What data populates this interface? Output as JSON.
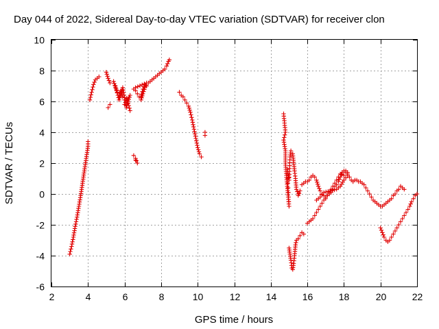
{
  "chart_data": {
    "type": "scatter",
    "title": "Day 044 of 2022, Sidereal Day-to-day VTEC variation (SDTVAR) for receiver clon",
    "xlabel": "GPS time / hours",
    "ylabel": "SDTVAR / TECUs",
    "xlim": [
      2,
      22
    ],
    "ylim": [
      -6,
      10
    ],
    "xticks": [
      "2",
      "4",
      "6",
      "8",
      "10",
      "12",
      "14",
      "16",
      "18",
      "20",
      "22"
    ],
    "yticks": [
      "-6",
      "-4",
      "-2",
      "0",
      "2",
      "4",
      "6",
      "8",
      "10"
    ],
    "grid": true,
    "marker": "+",
    "color": "#e00000",
    "series": [
      {
        "name": "SDTVAR",
        "segments": [
          [
            [
              3.0,
              -3.9
            ],
            [
              3.1,
              -3.4
            ],
            [
              3.2,
              -2.8
            ],
            [
              3.3,
              -2.1
            ],
            [
              3.4,
              -1.5
            ],
            [
              3.5,
              -0.8
            ],
            [
              3.6,
              -0.1
            ],
            [
              3.7,
              0.7
            ],
            [
              3.8,
              1.5
            ],
            [
              3.9,
              2.3
            ],
            [
              4.0,
              3.1
            ],
            [
              4.0,
              3.4
            ]
          ],
          [
            [
              4.1,
              6.1
            ],
            [
              4.2,
              6.6
            ],
            [
              4.3,
              7.1
            ],
            [
              4.4,
              7.4
            ],
            [
              4.5,
              7.5
            ],
            [
              4.6,
              7.6
            ]
          ],
          [
            [
              5.0,
              7.9
            ],
            [
              5.1,
              7.5
            ],
            [
              5.2,
              7.2
            ]
          ],
          [
            [
              5.1,
              5.6
            ],
            [
              5.2,
              5.8
            ]
          ],
          [
            [
              5.4,
              7.3
            ],
            [
              5.5,
              6.9
            ],
            [
              5.6,
              6.6
            ],
            [
              5.7,
              6.4
            ],
            [
              5.8,
              6.7
            ],
            [
              5.9,
              6.3
            ],
            [
              6.0,
              6.1
            ],
            [
              6.1,
              6.2
            ],
            [
              6.2,
              5.9
            ],
            [
              6.3,
              5.4
            ]
          ],
          [
            [
              5.5,
              7.0
            ],
            [
              5.7,
              6.1
            ],
            [
              5.9,
              6.9
            ],
            [
              6.1,
              5.6
            ],
            [
              6.3,
              6.4
            ],
            [
              6.0,
              5.8
            ]
          ],
          [
            [
              6.5,
              6.8
            ],
            [
              6.6,
              6.7
            ],
            [
              6.7,
              6.5
            ],
            [
              6.8,
              6.3
            ],
            [
              6.9,
              6.3
            ],
            [
              7.0,
              6.8
            ],
            [
              7.1,
              7.1
            ],
            [
              7.2,
              7.0
            ],
            [
              7.3,
              7.2
            ],
            [
              7.4,
              7.3
            ],
            [
              7.5,
              7.4
            ],
            [
              7.6,
              7.5
            ],
            [
              7.7,
              7.6
            ],
            [
              7.8,
              7.7
            ],
            [
              7.9,
              7.8
            ],
            [
              8.0,
              7.9
            ],
            [
              8.1,
              8.0
            ],
            [
              8.2,
              8.1
            ],
            [
              8.3,
              8.3
            ],
            [
              8.4,
              8.6
            ],
            [
              8.45,
              8.7
            ]
          ],
          [
            [
              6.9,
              6.1
            ],
            [
              7.0,
              6.5
            ],
            [
              7.2,
              7.2
            ],
            [
              6.6,
              6.9
            ]
          ],
          [
            [
              6.5,
              2.5
            ],
            [
              6.6,
              2.3
            ],
            [
              6.7,
              2.0
            ],
            [
              6.6,
              2.2
            ]
          ],
          [
            [
              9.0,
              6.6
            ],
            [
              9.1,
              6.4
            ],
            [
              9.2,
              6.3
            ],
            [
              9.3,
              6.1
            ],
            [
              9.4,
              5.9
            ],
            [
              9.5,
              5.7
            ],
            [
              9.6,
              5.3
            ],
            [
              9.7,
              4.8
            ],
            [
              9.8,
              4.2
            ],
            [
              9.9,
              3.6
            ],
            [
              10.0,
              3.0
            ],
            [
              10.1,
              2.6
            ],
            [
              10.2,
              2.4
            ]
          ],
          [
            [
              10.4,
              4.0
            ],
            [
              10.4,
              3.8
            ]
          ],
          [
            [
              14.7,
              5.2
            ],
            [
              14.75,
              4.6
            ],
            [
              14.8,
              4.0
            ],
            [
              14.7,
              3.5
            ],
            [
              14.8,
              2.8
            ],
            [
              14.8,
              2.0
            ],
            [
              14.85,
              1.2
            ],
            [
              14.9,
              0.5
            ],
            [
              14.95,
              -0.2
            ],
            [
              15.0,
              -0.8
            ],
            [
              14.9,
              1.6
            ],
            [
              15.0,
              0.9
            ],
            [
              15.05,
              2.4
            ],
            [
              15.1,
              2.8
            ],
            [
              15.2,
              2.6
            ],
            [
              15.3,
              1.5
            ],
            [
              15.35,
              1.0
            ],
            [
              15.4,
              0.3
            ],
            [
              15.5,
              0.0
            ],
            [
              15.6,
              0.2
            ],
            [
              15.5,
              -0.1
            ]
          ],
          [
            [
              15.0,
              -3.5
            ],
            [
              15.05,
              -3.9
            ],
            [
              15.1,
              -4.3
            ],
            [
              15.15,
              -4.8
            ],
            [
              15.2,
              -4.9
            ],
            [
              15.25,
              -4.5
            ],
            [
              15.3,
              -4.0
            ],
            [
              15.35,
              -3.3
            ],
            [
              15.4,
              -3.0
            ],
            [
              15.5,
              -2.9
            ],
            [
              15.6,
              -2.7
            ],
            [
              15.7,
              -2.5
            ],
            [
              15.8,
              -2.6
            ]
          ],
          [
            [
              15.7,
              0.6
            ],
            [
              15.8,
              0.7
            ],
            [
              15.9,
              0.8
            ],
            [
              16.0,
              0.8
            ],
            [
              16.1,
              0.9
            ],
            [
              16.2,
              1.1
            ],
            [
              16.3,
              1.2
            ],
            [
              16.4,
              1.1
            ],
            [
              16.5,
              0.9
            ],
            [
              16.6,
              0.5
            ],
            [
              16.7,
              0.2
            ],
            [
              16.8,
              0.0
            ],
            [
              16.9,
              -0.1
            ],
            [
              17.0,
              -0.2
            ],
            [
              17.1,
              -0.1
            ],
            [
              17.2,
              0.1
            ],
            [
              17.3,
              0.3
            ],
            [
              17.4,
              0.5
            ],
            [
              17.5,
              0.7
            ],
            [
              17.6,
              0.9
            ],
            [
              17.7,
              1.1
            ],
            [
              17.8,
              1.3
            ],
            [
              17.9,
              1.3
            ],
            [
              18.0,
              1.2
            ],
            [
              18.1,
              1.4
            ],
            [
              18.2,
              1.3
            ],
            [
              18.3,
              1.1
            ],
            [
              18.4,
              0.9
            ],
            [
              18.5,
              0.8
            ],
            [
              18.6,
              0.9
            ],
            [
              18.7,
              0.9
            ],
            [
              18.8,
              0.8
            ],
            [
              18.9,
              0.8
            ],
            [
              19.0,
              0.7
            ],
            [
              19.1,
              0.6
            ],
            [
              19.2,
              0.4
            ],
            [
              19.3,
              0.2
            ],
            [
              19.4,
              0.0
            ],
            [
              19.5,
              -0.2
            ],
            [
              19.6,
              -0.4
            ],
            [
              19.7,
              -0.5
            ],
            [
              19.8,
              -0.6
            ],
            [
              19.9,
              -0.7
            ],
            [
              20.0,
              -0.8
            ],
            [
              20.1,
              -0.8
            ],
            [
              20.2,
              -0.7
            ],
            [
              20.3,
              -0.6
            ],
            [
              20.4,
              -0.5
            ],
            [
              20.5,
              -0.4
            ],
            [
              20.6,
              -0.3
            ],
            [
              20.7,
              -0.1
            ],
            [
              20.8,
              0.0
            ],
            [
              20.9,
              0.2
            ],
            [
              21.0,
              0.3
            ],
            [
              21.1,
              0.5
            ],
            [
              21.2,
              0.4
            ],
            [
              21.3,
              0.3
            ]
          ],
          [
            [
              16.0,
              -1.9
            ],
            [
              16.1,
              -1.8
            ],
            [
              16.2,
              -1.7
            ],
            [
              16.3,
              -1.6
            ],
            [
              16.4,
              -1.4
            ],
            [
              16.5,
              -1.2
            ],
            [
              16.6,
              -1.0
            ],
            [
              16.7,
              -0.8
            ],
            [
              16.8,
              -0.6
            ],
            [
              16.9,
              -0.4
            ],
            [
              17.0,
              -0.3
            ],
            [
              17.1,
              -0.1
            ],
            [
              17.2,
              0.0
            ],
            [
              17.3,
              0.1
            ],
            [
              17.4,
              0.3
            ],
            [
              17.5,
              0.5
            ],
            [
              17.6,
              0.6
            ],
            [
              17.7,
              0.8
            ],
            [
              17.8,
              1.1
            ],
            [
              17.9,
              1.4
            ],
            [
              18.0,
              1.5
            ],
            [
              18.1,
              1.5
            ],
            [
              18.2,
              1.4
            ]
          ],
          [
            [
              16.5,
              -0.4
            ],
            [
              16.7,
              -0.2
            ],
            [
              16.9,
              0.1
            ],
            [
              17.6,
              0.3
            ],
            [
              17.8,
              0.5
            ],
            [
              18.0,
              0.9
            ],
            [
              18.2,
              1.2
            ]
          ],
          [
            [
              20.0,
              -2.2
            ],
            [
              20.1,
              -2.5
            ],
            [
              20.2,
              -2.8
            ],
            [
              20.3,
              -3.0
            ],
            [
              20.4,
              -3.1
            ],
            [
              20.5,
              -3.0
            ],
            [
              20.6,
              -2.8
            ],
            [
              20.7,
              -2.6
            ],
            [
              20.8,
              -2.4
            ],
            [
              20.9,
              -2.2
            ],
            [
              21.0,
              -2.0
            ],
            [
              21.1,
              -1.8
            ],
            [
              21.2,
              -1.6
            ],
            [
              21.3,
              -1.4
            ],
            [
              21.4,
              -1.2
            ],
            [
              21.5,
              -1.0
            ],
            [
              21.6,
              -0.8
            ],
            [
              21.7,
              -0.5
            ],
            [
              21.8,
              -0.3
            ],
            [
              21.9,
              -0.1
            ],
            [
              22.0,
              0.0
            ]
          ]
        ]
      }
    ]
  }
}
